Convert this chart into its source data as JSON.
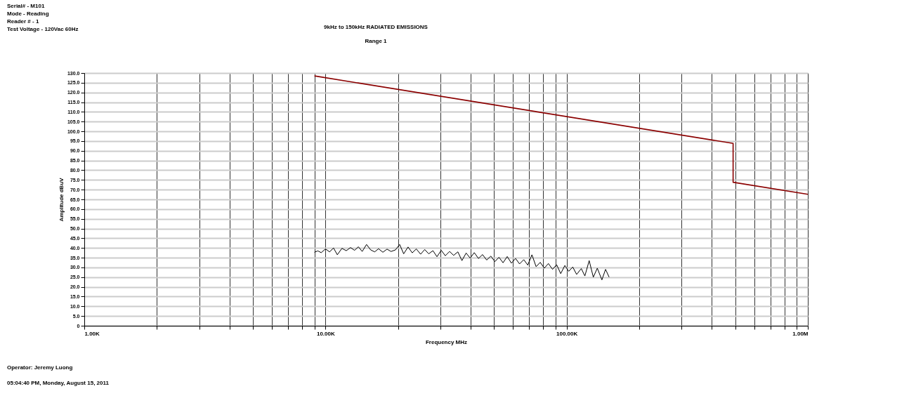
{
  "chart_data": {
    "type": "line",
    "title": "9kHz to 150kHz RADIATED EMISSIONS",
    "subtitle": "Range 1",
    "xlabel": "Frequency MHz",
    "ylabel": "Amplitude dBuV",
    "annotations": [
      "Serial# - M101",
      "Mode - Reading",
      "Reader # - 1",
      "Test Voltage - 120Vac 60Hz",
      "Operator: Jeremy Luong",
      "05:04:40 PM, Monday, August 15, 2011"
    ],
    "log": "x",
    "grid": true,
    "legend": false,
    "line_style": "solid",
    "marker": "none",
    "xlim": [
      1000,
      1000000
    ],
    "xticks": [
      {
        "value": 1000,
        "label": "1.00K"
      },
      {
        "value": 2000,
        "label": null
      },
      {
        "value": 3000,
        "label": null
      },
      {
        "value": 4000,
        "label": null
      },
      {
        "value": 5000,
        "label": null
      },
      {
        "value": 6000,
        "label": null
      },
      {
        "value": 7000,
        "label": null
      },
      {
        "value": 8000,
        "label": null
      },
      {
        "value": 9000,
        "label": null
      },
      {
        "value": 10000,
        "label": "10.00K"
      },
      {
        "value": 20000,
        "label": null
      },
      {
        "value": 30000,
        "label": null
      },
      {
        "value": 40000,
        "label": null
      },
      {
        "value": 50000,
        "label": null
      },
      {
        "value": 60000,
        "label": null
      },
      {
        "value": 70000,
        "label": null
      },
      {
        "value": 80000,
        "label": null
      },
      {
        "value": 90000,
        "label": null
      },
      {
        "value": 100000,
        "label": "100.00K"
      },
      {
        "value": 200000,
        "label": null
      },
      {
        "value": 300000,
        "label": null
      },
      {
        "value": 400000,
        "label": null
      },
      {
        "value": 500000,
        "label": null
      },
      {
        "value": 600000,
        "label": null
      },
      {
        "value": 700000,
        "label": null
      },
      {
        "value": 800000,
        "label": null
      },
      {
        "value": 900000,
        "label": null
      },
      {
        "value": 1000000,
        "label": "1.00M"
      }
    ],
    "ylim": [
      0,
      130
    ],
    "yticks": [
      0,
      {
        "value": 5,
        "label": "5.0"
      },
      {
        "value": 10,
        "label": "10.0"
      },
      {
        "value": 15,
        "label": "15.0"
      },
      {
        "value": 20,
        "label": "20.0"
      },
      {
        "value": 25,
        "label": "25.0"
      },
      {
        "value": 30,
        "label": "30.0"
      },
      {
        "value": 35,
        "label": "35.0"
      },
      {
        "value": 40,
        "label": "40.0"
      },
      {
        "value": 45,
        "label": "45.0"
      },
      {
        "value": 50,
        "label": "50.0"
      },
      {
        "value": 55,
        "label": "55.0"
      },
      {
        "value": 60,
        "label": "60.0"
      },
      {
        "value": 65,
        "label": "65.0"
      },
      {
        "value": 70,
        "label": "70.0"
      },
      {
        "value": 75,
        "label": "75.0"
      },
      {
        "value": 80,
        "label": "80.0"
      },
      {
        "value": 85,
        "label": "85.0"
      },
      {
        "value": 90,
        "label": "90.0"
      },
      {
        "value": 95,
        "label": "95.0"
      },
      {
        "value": 100,
        "label": "100.0"
      },
      {
        "value": 105,
        "label": "105.0"
      },
      {
        "value": 110,
        "label": "110.0"
      },
      {
        "value": 115,
        "label": "115.0"
      },
      {
        "value": 120,
        "label": "120.0"
      },
      {
        "value": 125,
        "label": "125.0"
      },
      {
        "value": 130,
        "label": "130.0"
      }
    ],
    "series": [
      {
        "color": "#8b0000",
        "x": [
          9000,
          490000,
          490000,
          1000000
        ],
        "values": [
          128.5,
          93.8,
          73.8,
          67.6
        ]
      },
      {
        "color": "#000000",
        "x": [
          9000,
          9300,
          9600,
          10000,
          10400,
          10800,
          11200,
          11700,
          12200,
          12700,
          13200,
          13700,
          14200,
          14800,
          15400,
          16000,
          16600,
          17300,
          18000,
          18700,
          19500,
          20300,
          21100,
          22000,
          22900,
          23800,
          24800,
          25800,
          26800,
          27900,
          29000,
          30200,
          31400,
          32700,
          34000,
          35400,
          36800,
          38300,
          39800,
          41400,
          43100,
          44800,
          46600,
          48500,
          50400,
          52400,
          54500,
          56700,
          59000,
          61400,
          63800,
          66400,
          69000,
          71800,
          74700,
          77700,
          80800,
          84000,
          87400,
          90900,
          94500,
          98300,
          102000,
          106000,
          110000,
          115000,
          119000,
          124000,
          129000,
          134000,
          140000,
          145000,
          150000
        ],
        "values": [
          37.8,
          38.5,
          37.6,
          39.5,
          38.0,
          40.0,
          36.5,
          39.8,
          38.6,
          40.2,
          38.8,
          40.6,
          38.2,
          41.8,
          39.0,
          38.0,
          39.6,
          37.8,
          39.4,
          38.2,
          39.0,
          41.8,
          37.0,
          40.5,
          37.5,
          39.5,
          36.8,
          39.2,
          37.0,
          38.6,
          35.5,
          38.8,
          36.0,
          38.2,
          36.2,
          38.0,
          33.5,
          37.4,
          34.8,
          37.6,
          34.6,
          36.6,
          33.8,
          35.8,
          33.0,
          35.2,
          32.4,
          35.6,
          32.2,
          34.6,
          31.8,
          34.0,
          31.2,
          36.5,
          30.4,
          32.6,
          29.6,
          32.0,
          29.0,
          31.4,
          26.8,
          31.0,
          28.0,
          30.2,
          26.4,
          29.4,
          25.6,
          33.5,
          25.0,
          29.6,
          23.6,
          29.0,
          25.0
        ]
      }
    ]
  }
}
